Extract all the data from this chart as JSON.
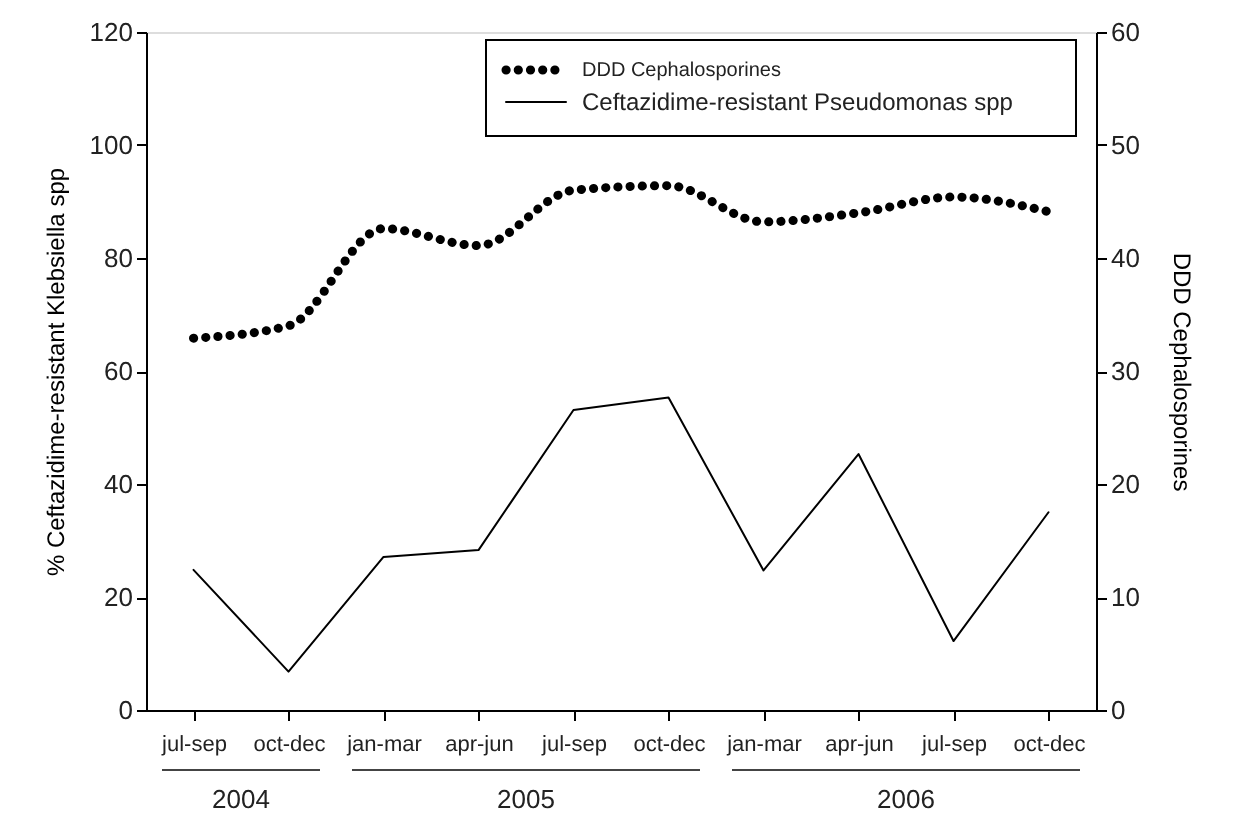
{
  "chart_data": {
    "type": "line",
    "categories": [
      "jul-sep",
      "oct-dec",
      "jan-mar",
      "apr-jun",
      "jul-sep",
      "oct-dec",
      "jan-mar",
      "apr-jun",
      "jul-sep",
      "oct-dec"
    ],
    "ylabel": "% Ceftazidime-resistant Klebsiella spp",
    "y2label": "DDD Cephalosporines",
    "ylim": [
      0,
      120
    ],
    "yticks": [
      0,
      20,
      40,
      60,
      80,
      100,
      120
    ],
    "y2lim": [
      0,
      60
    ],
    "y2ticks": [
      0,
      10,
      20,
      30,
      40,
      50,
      60
    ],
    "series": [
      {
        "name": "DDD Cephalosporines",
        "color": "#000000",
        "axis": "y2",
        "line_style": "dotted",
        "values": [
          32.9,
          34.0,
          42.6,
          41.1,
          46.0,
          46.4,
          43.2,
          44.0,
          45.4,
          44.1
        ]
      },
      {
        "name": "Ceftazidime-resistant Pseudomonas spp",
        "color": "#000000",
        "line_style": "solid",
        "values": [
          24.8,
          6.8,
          27.1,
          28.3,
          53.1,
          55.3,
          24.7,
          45.3,
          12.2,
          35.0
        ]
      }
    ],
    "annotations": [
      "2004",
      "2005",
      "2006"
    ],
    "legend": "top right",
    "grid": false
  }
}
